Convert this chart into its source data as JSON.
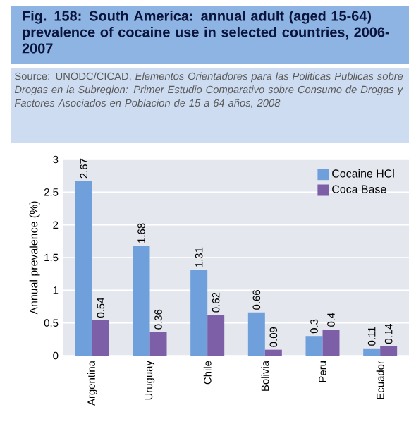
{
  "chart_data": {
    "type": "bar",
    "title": "Fig. 158: South America: annual adult (aged 15-64) prevalence of cocaine use in selected countries, 2006-2007",
    "annotations": [
      "Source: UNODC/CICAD, *Elementos Orientadores para las Politicas Publicas sobre Drogas en la Subregion: Primer Estudio Comparativo sobre Consumo de Drogas y Factores Asociados en Poblacion de 15 a 64 años, 2008*"
    ],
    "ylabel": "Annual prevalence (%)",
    "categories": [
      "Argentina",
      "Uruguay",
      "Chile",
      "Bolivia",
      "Peru",
      "Ecuador"
    ],
    "series": [
      {
        "name": "Cocaine HCl",
        "color": "#6fa0dc",
        "values": [
          2.67,
          1.68,
          1.31,
          0.66,
          0.3,
          0.11
        ]
      },
      {
        "name": "Coca Base",
        "color": "#7d5fa8",
        "values": [
          0.54,
          0.36,
          0.62,
          0.09,
          0.4,
          0.14
        ]
      }
    ],
    "ylim": [
      0,
      3
    ],
    "yticks": [
      0,
      0.5,
      1,
      1.5,
      2,
      2.5,
      3
    ],
    "grid": "y",
    "legend": "top right",
    "data_labels": true
  }
}
